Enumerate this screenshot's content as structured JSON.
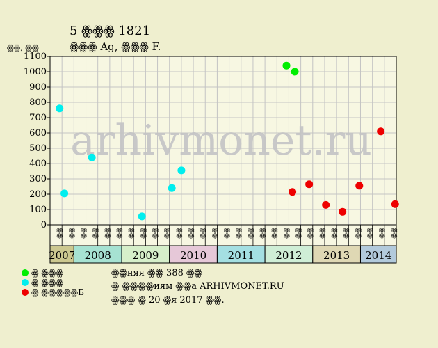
{
  "chart_data": {
    "type": "scatter",
    "title": "5 ꙮꙮꙮ 1821",
    "subtitle": "ꙮꙮꙮ Ag, ꙮꙮꙮ F.",
    "ylabel": "ꙮꙮ, ꙮꙮ",
    "ylim": [
      0,
      1100
    ],
    "yticks": [
      "0",
      "100",
      "200",
      "300",
      "400",
      "500",
      "600",
      "700",
      "800",
      "900",
      "1000",
      "1100"
    ],
    "grid": true,
    "xcats": [
      "ꙮꙮ",
      "ꙮꙮ",
      "ꙮꙮ",
      "ꙮꙮ",
      "ꙮꙮ",
      "ꙮꙮ",
      "ꙮꙮ",
      "ꙮꙮ",
      "ꙮꙮ",
      "ꙮꙮ",
      "ꙮꙮ",
      "ꙮꙮ",
      "ꙮꙮ",
      "ꙮꙮ",
      "ꙮꙮ",
      "ꙮꙮ",
      "ꙮꙮ",
      "ꙮꙮ",
      "ꙮꙮ",
      "ꙮꙮ",
      "ꙮꙮ",
      "ꙮꙮ",
      "ꙮꙮ",
      "ꙮꙮ",
      "ꙮꙮ",
      "ꙮꙮ",
      "ꙮꙮ",
      "ꙮꙮ",
      "ꙮꙮ"
    ],
    "years": [
      {
        "label": "2007",
        "color": "#ccc890",
        "start": 0,
        "count": 2
      },
      {
        "label": "2008",
        "color": "#a6e2d2",
        "start": 2,
        "count": 4
      },
      {
        "label": "2009",
        "color": "#d6efca",
        "start": 6,
        "count": 4
      },
      {
        "label": "2010",
        "color": "#e6c8d8",
        "start": 10,
        "count": 4
      },
      {
        "label": "2011",
        "color": "#a4dfe2",
        "start": 14,
        "count": 4
      },
      {
        "label": "2012",
        "color": "#cfeed6",
        "start": 18,
        "count": 4
      },
      {
        "label": "2013",
        "color": "#dfd8b4",
        "start": 22,
        "count": 4
      },
      {
        "label": "2014",
        "color": "#b2cadc",
        "start": 26,
        "count": 3
      }
    ],
    "series": [
      {
        "name": "ꙮ ꙮꙮꙮ",
        "color": "#00ee00",
        "points": [
          {
            "x": 19.3,
            "y": 1040
          },
          {
            "x": 20.0,
            "y": 1000
          }
        ]
      },
      {
        "name": "ꙮ ꙮꙮꙮ",
        "color": "#00eeee",
        "points": [
          {
            "x": 0.3,
            "y": 760
          },
          {
            "x": 0.7,
            "y": 205
          },
          {
            "x": 3.0,
            "y": 440
          },
          {
            "x": 7.2,
            "y": 55
          },
          {
            "x": 9.7,
            "y": 240
          },
          {
            "x": 10.5,
            "y": 355
          }
        ]
      },
      {
        "name": "ꙮ ꙮꙮꙮꙮꙮБ",
        "color": "#ee0000",
        "points": [
          {
            "x": 19.8,
            "y": 215
          },
          {
            "x": 21.2,
            "y": 265
          },
          {
            "x": 22.6,
            "y": 130
          },
          {
            "x": 24.0,
            "y": 85
          },
          {
            "x": 25.4,
            "y": 255
          },
          {
            "x": 27.2,
            "y": 610
          },
          {
            "x": 28.4,
            "y": 135
          }
        ]
      }
    ]
  },
  "watermark": "arhivmonet.ru",
  "footer": {
    "line1": "ꙮꙮняя ꙮꙮ 388 ꙮꙮ",
    "line2": "ꙮ ꙮꙮꙮꙮиям ꙮꙮа ARHIVMONET.RU",
    "line3": "ꙮꙮꙮ ꙮ 20 ꙮя 2017 ꙮꙮ."
  }
}
